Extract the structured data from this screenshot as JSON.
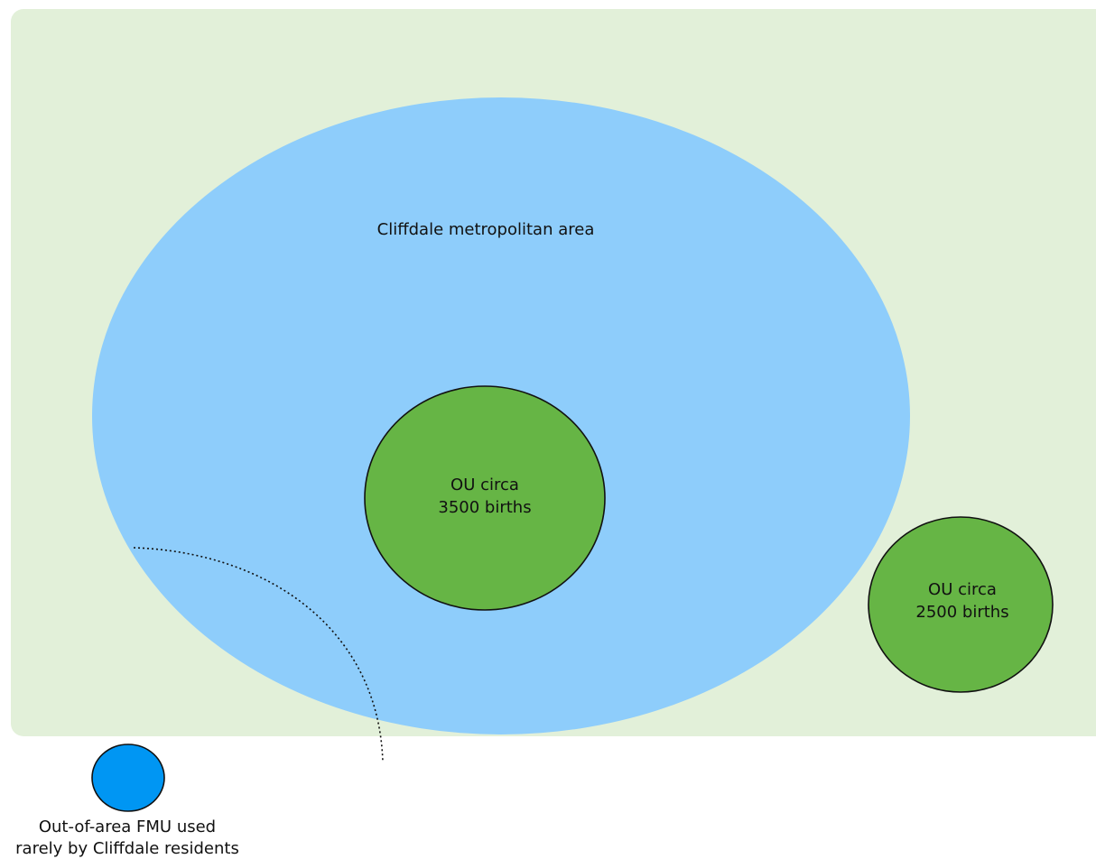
{
  "diagram": {
    "metro_area_label": "Cliffdale metropolitan area",
    "unit_large": {
      "line1": "OU circa",
      "line2": "3500 births"
    },
    "unit_small": {
      "line1": "OU circa",
      "line2": "2500 births"
    },
    "fmu": {
      "line1": "Out-of-area FMU used",
      "line2": "rarely by Cliffdale residents"
    }
  },
  "colors": {
    "region_background": "#e2f0d9",
    "metro_area": "#8ecdfb",
    "obstetric_unit": "#66b545",
    "fmu": "#0096f3",
    "outline": "#111111"
  }
}
